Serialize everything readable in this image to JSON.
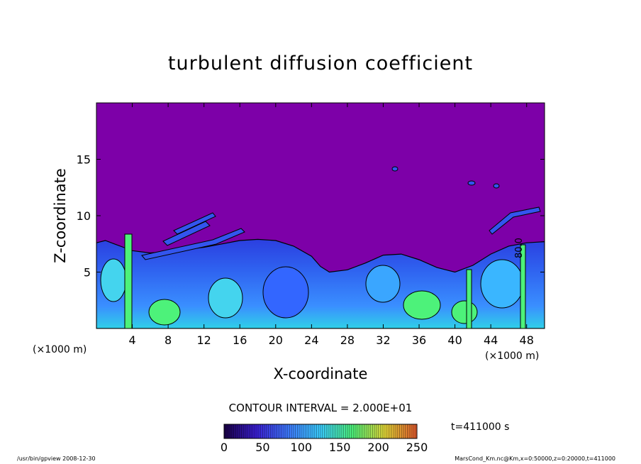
{
  "chart_data": {
    "type": "heatmap",
    "title": "turbulent diffusion coefficient",
    "xlabel": "X-coordinate",
    "ylabel": "Z-coordinate",
    "x_unit": "(×1000 m)",
    "y_unit": "(×1000 m)",
    "x_ticks": [
      4,
      8,
      12,
      16,
      20,
      24,
      28,
      32,
      36,
      40,
      44,
      48
    ],
    "y_ticks": [
      5,
      10,
      15
    ],
    "xlim": [
      0,
      50
    ],
    "ylim": [
      0,
      20
    ],
    "colorbar": {
      "ticks": [
        0,
        50,
        100,
        150,
        200,
        250
      ],
      "range": [
        0,
        250
      ],
      "colors": [
        "#1a0046",
        "#3b1fd6",
        "#3f7bff",
        "#3ccfff",
        "#4df27a",
        "#e4d838",
        "#e1582c"
      ]
    },
    "contour_label": "80.0",
    "background_color": "#7d00a8",
    "layer_top_profile": [
      [
        0,
        7.6
      ],
      [
        1,
        7.8
      ],
      [
        2,
        7.5
      ],
      [
        3,
        7.2
      ],
      [
        4,
        6.9
      ],
      [
        6,
        6.7
      ],
      [
        8,
        6.8
      ],
      [
        10,
        7.0
      ],
      [
        12,
        7.2
      ],
      [
        14,
        7.5
      ],
      [
        16,
        7.8
      ],
      [
        18,
        7.9
      ],
      [
        20,
        7.8
      ],
      [
        22,
        7.3
      ],
      [
        24,
        6.4
      ],
      [
        25,
        5.5
      ],
      [
        26,
        5.0
      ],
      [
        28,
        5.2
      ],
      [
        30,
        5.8
      ],
      [
        32,
        6.5
      ],
      [
        34,
        6.6
      ],
      [
        36,
        6.1
      ],
      [
        38,
        5.4
      ],
      [
        40,
        5.0
      ],
      [
        42,
        5.6
      ],
      [
        44,
        6.6
      ],
      [
        46,
        7.3
      ],
      [
        48,
        7.6
      ],
      [
        50,
        7.7
      ]
    ]
  },
  "contour_interval_text": "CONTOUR INTERVAL = 2.000E+01",
  "time_text": "t=411000 s",
  "footer_left": "/usr/bin/gpview   2008-12-30",
  "footer_right": "MarsCond_Km.nc@Km,x=0:50000,z=0:20000,t=411000"
}
